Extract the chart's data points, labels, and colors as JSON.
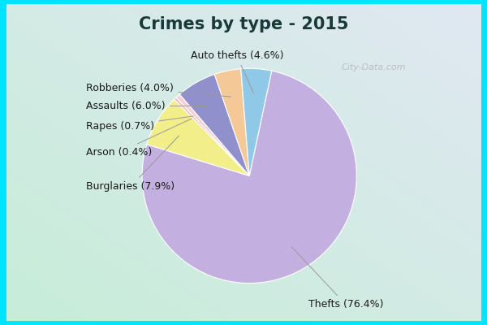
{
  "title": "Crimes by type - 2015",
  "labels": [
    "Thefts",
    "Burglaries",
    "Arson",
    "Rapes",
    "Assaults",
    "Robberies",
    "Auto thefts"
  ],
  "values": [
    76.4,
    7.9,
    0.4,
    0.7,
    6.0,
    4.0,
    4.6
  ],
  "pie_colors": [
    "#c4b0e0",
    "#f2ee8a",
    "#f5b8b8",
    "#f8d0d8",
    "#9090cc",
    "#f5c898",
    "#90c8e8"
  ],
  "bg_border": "#00e5ff",
  "bg_inner_tl": "#d8f5e8",
  "bg_inner_br": "#e8f0f8",
  "title_color": "#1a3a3a",
  "label_color": "#1a1a1a",
  "title_fontsize": 15,
  "label_fontsize": 9,
  "watermark": "City-Data.com",
  "figsize": [
    6.0,
    4.0
  ],
  "dpi": 100
}
